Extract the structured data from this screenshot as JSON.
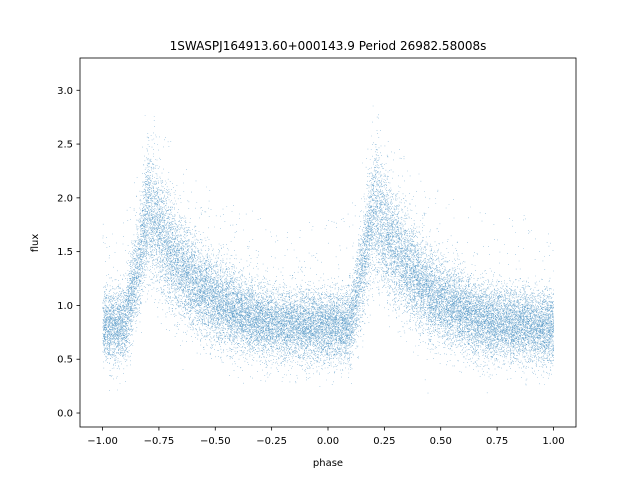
{
  "chart_data": {
    "type": "scatter",
    "title": "1SWASPJ164913.60+000143.9 Period 26982.58008s",
    "xlabel": "phase",
    "ylabel": "flux",
    "xlim": [
      -1.1,
      1.1
    ],
    "ylim": [
      -0.13,
      3.3
    ],
    "xticks": [
      -1.0,
      -0.75,
      -0.5,
      -0.25,
      0.0,
      0.25,
      0.5,
      0.75,
      1.0
    ],
    "xtick_labels": [
      "−1.00",
      "−0.75",
      "−0.50",
      "−0.25",
      "0.00",
      "0.25",
      "0.50",
      "0.75",
      "1.00"
    ],
    "yticks": [
      0.0,
      0.5,
      1.0,
      1.5,
      2.0,
      2.5,
      3.0
    ],
    "ytick_labels": [
      "0.0",
      "0.5",
      "1.0",
      "1.5",
      "2.0",
      "2.5",
      "3.0"
    ],
    "grid": false,
    "legend": "none",
    "marker_color": "#1f77b4",
    "phase_range": [
      -1.0,
      1.0
    ],
    "period_in_phase": 1.0,
    "approx_point_count": 30000,
    "mean_curve": {
      "phase": [
        -1.0,
        -0.95,
        -0.9,
        -0.85,
        -0.8,
        -0.75,
        -0.7,
        -0.65,
        -0.6,
        -0.55,
        -0.5,
        -0.45,
        -0.4,
        -0.35,
        -0.3,
        -0.25,
        -0.2,
        -0.15,
        -0.1,
        -0.05,
        0.0
      ],
      "flux": [
        0.8,
        0.8,
        0.85,
        1.3,
        1.9,
        1.7,
        1.5,
        1.35,
        1.22,
        1.12,
        1.04,
        0.98,
        0.93,
        0.89,
        0.86,
        0.84,
        0.83,
        0.82,
        0.81,
        0.8,
        0.8
      ]
    }
  }
}
